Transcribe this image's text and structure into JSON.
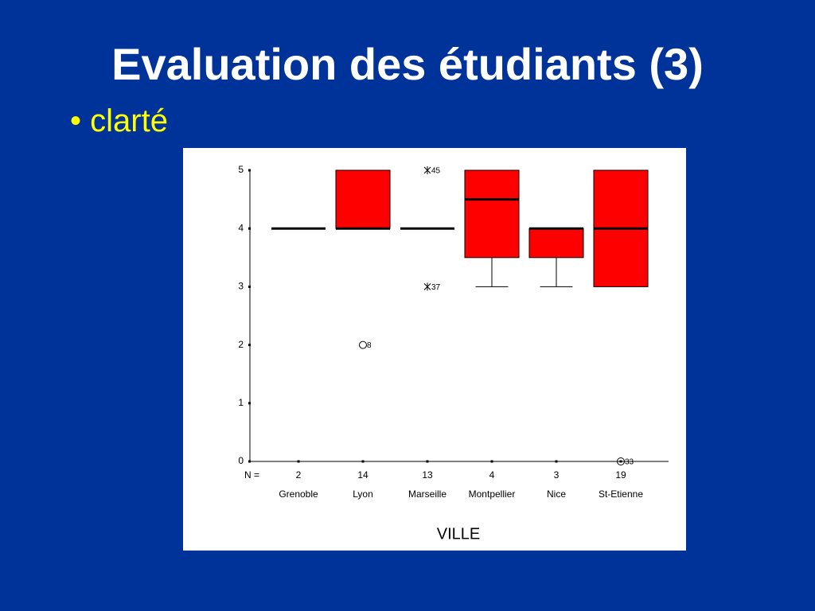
{
  "header": {
    "title": "Evaluation des étudiants (3)",
    "bullet": "clarté"
  },
  "chart_data": {
    "type": "box",
    "categories": [
      "Grenoble",
      "Lyon",
      "Marseille",
      "Montpellier",
      "Nice",
      "St-Etienne"
    ],
    "n_label": "N =",
    "n": [
      2,
      14,
      13,
      4,
      3,
      19
    ],
    "color": "#ff0000",
    "boxes": [
      {
        "min": 4,
        "q1": 4,
        "median": 4,
        "q3": 4,
        "max": 4
      },
      {
        "min": 4,
        "q1": 4,
        "median": 4,
        "q3": 5,
        "max": 5
      },
      {
        "min": 4,
        "q1": 4,
        "median": 4,
        "q3": 4,
        "max": 4
      },
      {
        "min": 3,
        "q1": 3.5,
        "median": 4.5,
        "q3": 5,
        "max": 5
      },
      {
        "min": 3,
        "q1": 3.5,
        "median": 4,
        "q3": 4,
        "max": 4
      },
      {
        "min": 3,
        "q1": 3,
        "median": 4,
        "q3": 5,
        "max": 5
      }
    ],
    "outliers": [
      [],
      [
        {
          "value": 2,
          "label": "8",
          "marker": "circle"
        }
      ],
      [
        {
          "value": 5,
          "label": "45",
          "marker": "star"
        },
        {
          "value": 3,
          "label": "37",
          "marker": "star"
        }
      ],
      [],
      [],
      [
        {
          "value": 0,
          "label": "33",
          "marker": "circle"
        }
      ]
    ],
    "x_label": "VILLE",
    "ylim": [
      0,
      5
    ],
    "yticks": [
      0,
      1,
      2,
      3,
      4,
      5
    ]
  }
}
